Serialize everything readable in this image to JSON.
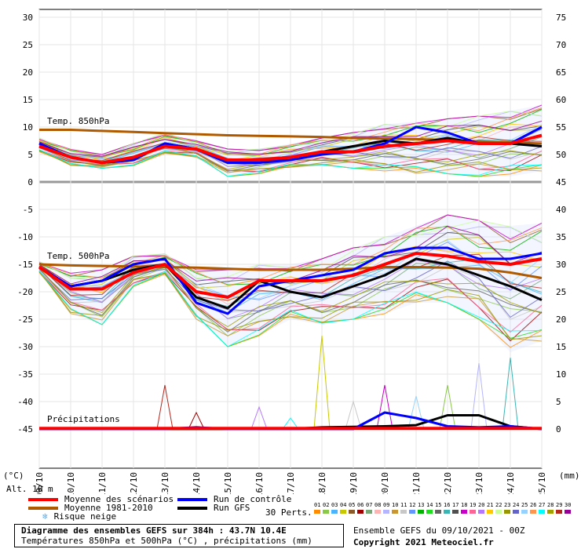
{
  "chart_data": {
    "type": "line",
    "title": "Diagramme des ensembles GEFS sur 384h : 43.7N 10.4E",
    "subtitle": "Températures 850hPa et 500hPa (°C) , précipitations (mm)",
    "run_info": "Ensemble GEFS du 09/10/2021 - 00Z",
    "copyright": "Copyright 2021 Meteociel.fr",
    "left_axis_unit": "(°C)",
    "right_axis_unit": "(mm)",
    "altitude_label": "Alt. 10 m",
    "left_ticks": [
      30,
      25,
      20,
      15,
      10,
      5,
      0,
      -5,
      -10,
      -15,
      -20,
      -25,
      -30,
      -35,
      -40,
      -45
    ],
    "right_ticks_top": [
      75,
      70,
      65,
      60,
      55,
      50,
      45
    ],
    "right_ticks_bottom": [
      40,
      35,
      30,
      25,
      20,
      15,
      10,
      5,
      0
    ],
    "x_dates": [
      "09/10",
      "10/10",
      "11/10",
      "12/10",
      "13/10",
      "14/10",
      "15/10",
      "16/10",
      "17/10",
      "18/10",
      "19/10",
      "20/10",
      "21/10",
      "22/10",
      "23/10",
      "24/10",
      "25/10"
    ],
    "panel_labels": {
      "t850": "Temp. 850hPa",
      "t500": "Temp. 500hPa",
      "precip": "Précipitations"
    },
    "t850": {
      "mean": [
        6.5,
        4.5,
        3.5,
        4.5,
        6.5,
        6,
        4,
        4,
        4.5,
        5.5,
        5.5,
        6.5,
        7,
        7.5,
        7,
        7,
        8.5
      ],
      "climate": [
        9.5,
        9.5,
        9.3,
        9.1,
        8.9,
        8.7,
        8.5,
        8.4,
        8.3,
        8.2,
        8,
        7.9,
        7.8,
        7.6,
        7.4,
        7.2,
        7
      ],
      "control": [
        7,
        4.5,
        3.5,
        4,
        7,
        6,
        3.5,
        3.5,
        4,
        5,
        5.5,
        7,
        10,
        9,
        7,
        7,
        10
      ],
      "gfs": [
        7,
        4.5,
        3.5,
        4,
        7,
        6,
        3.5,
        3.5,
        4.5,
        5.5,
        6.5,
        7.5,
        7,
        8,
        7,
        7,
        6.5
      ],
      "spread_low": [
        5.5,
        3,
        2.5,
        3,
        5,
        4.5,
        1,
        1.5,
        2.5,
        3,
        2.5,
        2,
        1.5,
        1.5,
        1,
        1,
        2
      ],
      "spread_high": [
        8,
        6,
        5,
        7,
        9,
        7.5,
        6,
        6,
        7,
        8,
        9,
        10.5,
        11,
        11.5,
        12,
        13,
        14
      ]
    },
    "t500": {
      "mean": [
        -15.5,
        -19.5,
        -19.5,
        -16.5,
        -15,
        -20,
        -21,
        -18,
        -18,
        -18,
        -17,
        -15,
        -13,
        -13.5,
        -14.5,
        -15,
        -14
      ],
      "climate": [
        -15,
        -15.2,
        -15.3,
        -15.4,
        -15.5,
        -15.6,
        -15.8,
        -16,
        -16,
        -16,
        -15.8,
        -15.5,
        -15.5,
        -15.6,
        -15.8,
        -16.5,
        -17.5
      ],
      "control": [
        -15.5,
        -19,
        -18,
        -15,
        -14,
        -22,
        -24,
        -19,
        -18,
        -17,
        -16,
        -13,
        -12,
        -12,
        -14,
        -14,
        -13
      ],
      "gfs": [
        -15.5,
        -19,
        -18,
        -16,
        -15,
        -21,
        -23,
        -18,
        -20,
        -21,
        -19,
        -17,
        -14,
        -15,
        -17,
        -19,
        -21.5
      ],
      "spread_low": [
        -16.5,
        -24,
        -26,
        -19,
        -17,
        -25,
        -30,
        -28,
        -25,
        -26,
        -25,
        -24,
        -22,
        -22,
        -25,
        -31,
        -29
      ],
      "spread_high": [
        -14.5,
        -16.5,
        -16,
        -13.5,
        -13,
        -16,
        -16,
        -15,
        -15,
        -14,
        -12,
        -10,
        -8,
        -6,
        -7,
        -8,
        -7.5
      ]
    },
    "precip": {
      "x_days": [
        0,
        1,
        2,
        3,
        4,
        5,
        6,
        7,
        8,
        9,
        10,
        11,
        12,
        13,
        14,
        15,
        16
      ],
      "control": [
        0,
        0,
        0,
        0,
        0,
        0.3,
        0,
        0,
        0,
        0,
        0,
        3,
        2,
        0.5,
        0.3,
        0.5,
        0
      ],
      "gfs": [
        0,
        0,
        0,
        0,
        0,
        0,
        0,
        0,
        0,
        0.3,
        0.4,
        0.5,
        0.7,
        2.5,
        2.5,
        0.5,
        0
      ],
      "max": [
        0,
        0,
        0,
        0,
        8,
        3,
        0,
        4,
        2,
        17,
        5,
        8,
        6,
        8,
        12,
        13,
        0
      ]
    },
    "legend": {
      "mean": "Moyenne des scénarios",
      "mean_color": "#ff0000",
      "climate": "Moyenne 1981-2010",
      "climate_color": "#b05a00",
      "control": "Run de contrôle",
      "control_color": "#0000ff",
      "gfs": "Run GFS",
      "gfs_color": "#000000",
      "snow": "Risque neige",
      "snow_color": "#4ab4ff"
    },
    "perturbations": {
      "label": "30 Perts.",
      "numbers": [
        "01",
        "02",
        "03",
        "04",
        "05",
        "06",
        "07",
        "08",
        "09",
        "10",
        "11",
        "12",
        "13",
        "14",
        "15",
        "16",
        "17",
        "18",
        "19",
        "20",
        "21",
        "22",
        "23",
        "24",
        "25",
        "26",
        "27",
        "28",
        "29",
        "30"
      ],
      "colors": [
        "#ff8c00",
        "#8ac84a",
        "#4ab4ff",
        "#c8c800",
        "#8c5a28",
        "#a00000",
        "#78a878",
        "#ffb4b4",
        "#b4b4ff",
        "#c89632",
        "#c8c8c8",
        "#6496ff",
        "#00b400",
        "#1edc1e",
        "#646464",
        "#3cb4b4",
        "#505050",
        "#c800c8",
        "#ff6496",
        "#b478ff",
        "#ffc800",
        "#c8ff96",
        "#969600",
        "#6464c8",
        "#96d2ff",
        "#ff9650",
        "#00ffff",
        "#a0a000",
        "#b4281e",
        "#960096"
      ]
    }
  }
}
